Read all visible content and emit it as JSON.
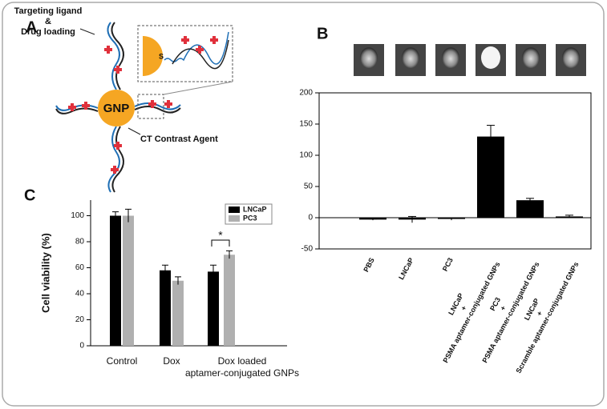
{
  "panels": [
    "A",
    "B",
    "C"
  ],
  "diagram": {
    "center": "GNP",
    "ligand_lines": [
      "Targeting ligand",
      "&",
      "Drug loading"
    ],
    "contrast": "CT Contrast Agent",
    "linker": "S"
  },
  "chart_data": [
    {
      "type": "bar",
      "categories": [
        [
          "PBS"
        ],
        [
          "LNCaP"
        ],
        [
          "PC3"
        ],
        [
          "LNCaP",
          "+",
          "PSMA aptamer-conjugated GNPs"
        ],
        [
          "PC3",
          "+",
          "PSMA aptamer-conjugated GNPs"
        ],
        [
          "LNCaP",
          "+",
          "Scramble aptamer-conjugated GNPs"
        ]
      ],
      "values": [
        -3,
        -3,
        -2,
        130,
        28,
        2
      ],
      "errors": [
        1,
        5,
        2,
        18,
        3,
        2
      ],
      "color": "#000000",
      "ylim": [
        -50,
        200
      ],
      "yticks": [
        -50,
        0,
        50,
        100,
        150,
        200
      ]
    },
    {
      "type": "grouped-bar",
      "ylabel": "Cell viability (%)",
      "categories": [
        [
          "Control"
        ],
        [
          "Dox"
        ],
        [
          "Dox loaded",
          "aptamer-conjugated GNPs"
        ]
      ],
      "series": [
        {
          "name": "LNCaP",
          "color": "#000000",
          "values": [
            100,
            58,
            57
          ],
          "errors": [
            3,
            4,
            5
          ]
        },
        {
          "name": "PC3",
          "color": "#b0b0b0",
          "values": [
            100,
            50,
            70
          ],
          "errors": [
            5,
            3,
            3
          ]
        }
      ],
      "ylim": [
        0,
        112
      ],
      "yticks": [
        0,
        20,
        40,
        60,
        80,
        100
      ],
      "annotation": "*",
      "legend": "top-right"
    }
  ]
}
